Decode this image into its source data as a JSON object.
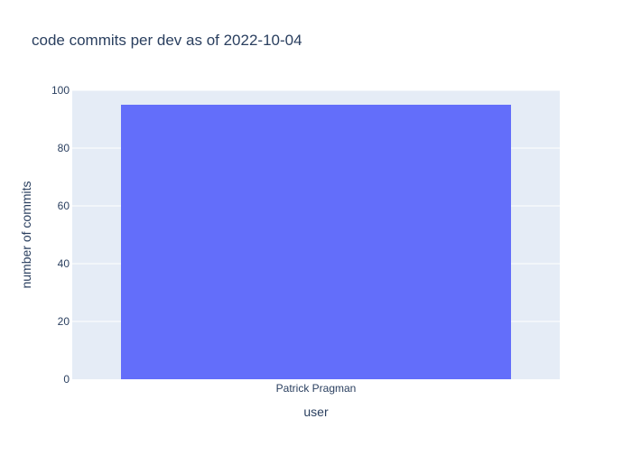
{
  "chart_data": {
    "type": "bar",
    "title": "code commits per dev as of 2022-10-04",
    "xlabel": "user",
    "ylabel": "number of commits",
    "categories": [
      "Patrick Pragman"
    ],
    "values": [
      95
    ],
    "ylim": [
      0,
      100
    ],
    "yticks": [
      0,
      20,
      40,
      60,
      80,
      100
    ],
    "grid": true,
    "colors": {
      "bar": "#636efa",
      "plot_bg": "#e5ecf6",
      "grid": "#ffffff",
      "text": "#2a3f5f"
    }
  }
}
